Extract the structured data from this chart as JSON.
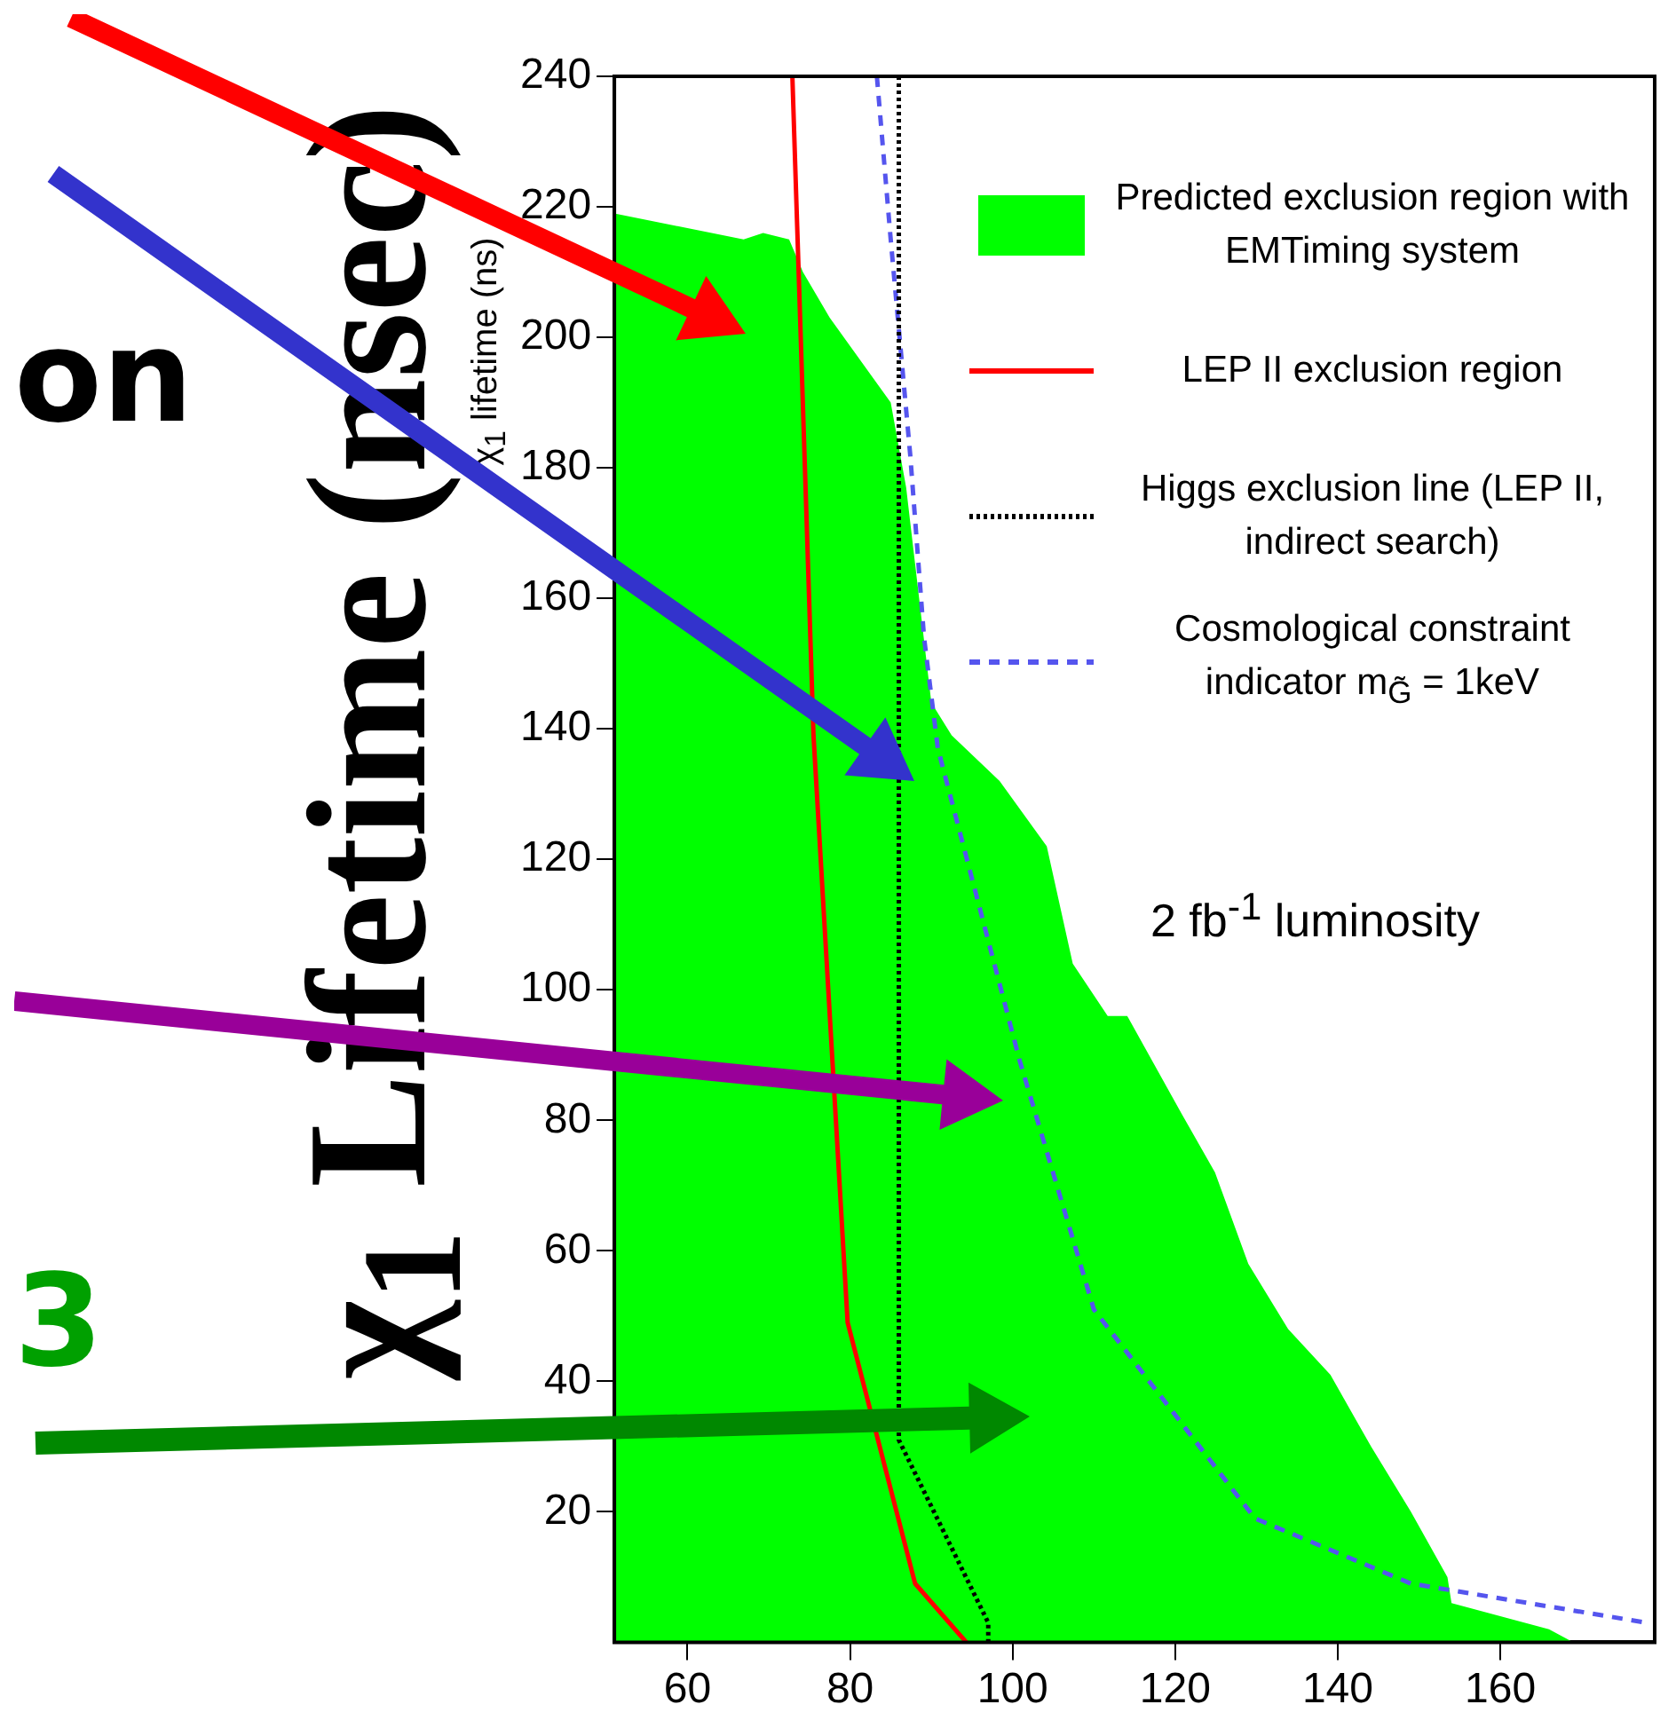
{
  "chart_data": {
    "type": "line",
    "ylabel": "χ$_{1}$ lifetime (ns)",
    "xlim": [
      51,
      179
    ],
    "ylim": [
      0,
      240
    ],
    "xticks": [
      60,
      80,
      100,
      120,
      140,
      160
    ],
    "yticks": [
      20,
      40,
      60,
      80,
      100,
      120,
      140,
      160,
      180,
      200,
      220,
      240
    ],
    "legend": "top right",
    "series": [
      {
        "name": "Predicted exclusion region with EMTiming system",
        "type": "area",
        "color": "#00ff00",
        "x": [
          51,
          66.9,
          69.3,
          72.5,
          74.2,
          77.5,
          85,
          86.9,
          90,
          92.5,
          98.4,
          104.2,
          107.4,
          111.7,
          114.1,
          120.8,
          124.9,
          129,
          133.9,
          139.1,
          144.1,
          149,
          153.5,
          154,
          166,
          169
        ],
        "values": [
          219,
          215,
          216,
          215,
          210,
          203,
          190,
          177,
          144,
          139,
          132,
          122,
          104,
          96,
          96,
          81,
          72,
          58,
          48,
          41,
          30,
          20,
          10,
          6,
          2,
          0
        ]
      },
      {
        "name": "LEP II exclusion region",
        "type": "line",
        "line_style": "solid",
        "color": "#ff0000",
        "x": [
          72.9,
          75.5,
          79.7,
          88,
          94.3
        ],
        "values": [
          240,
          139,
          49,
          9,
          0
        ]
      },
      {
        "name": "Higgs exclusion line (LEP II, indirect search)",
        "type": "line",
        "line_style": "dotted",
        "color": "#000000",
        "x": [
          86,
          86,
          97,
          97
        ],
        "values": [
          240,
          31,
          3,
          0
        ]
      },
      {
        "name": "Cosmological constraint indicator m$_{G̃}$ = 1keV",
        "type": "line",
        "line_style": "dashed",
        "color": "#5555ee",
        "x": [
          83.3,
          85,
          87.4,
          89.1,
          90.8,
          100.9,
          110,
          129.8,
          149,
          178
        ],
        "values": [
          240,
          215,
          182,
          154,
          137,
          89,
          51,
          19,
          9,
          3
        ]
      }
    ],
    "annotations": [
      "2 fb$^{-1}$ luminosity",
      "χ$_{1}$ Lifetime (nsec)",
      "on",
      "3"
    ]
  }
}
